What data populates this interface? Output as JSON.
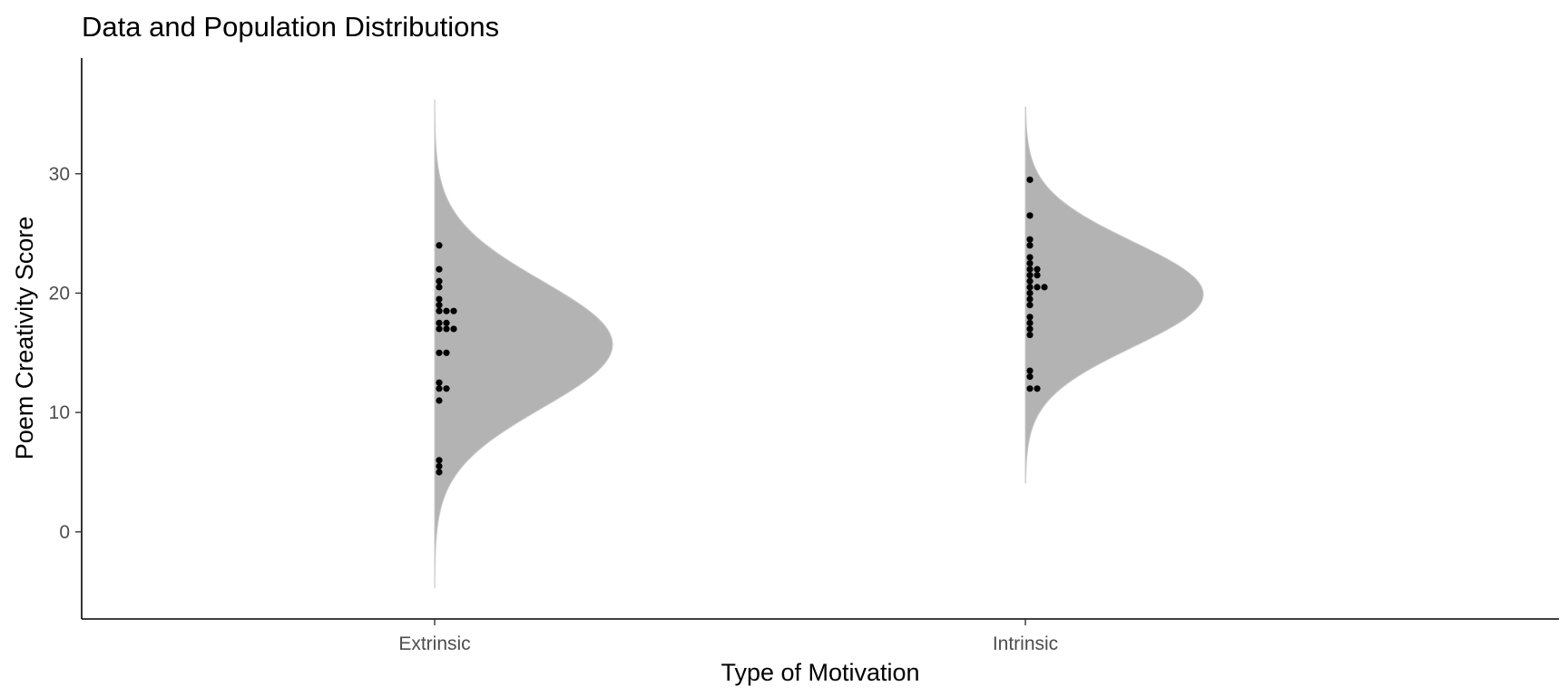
{
  "chart_data": {
    "type": "violin",
    "title": "Data and Population Distributions",
    "xlabel": "Type of Motivation",
    "ylabel": "Poem Creativity Score",
    "ylim": [
      -7.3,
      39.7
    ],
    "yticks": [
      0,
      10,
      20,
      30
    ],
    "grid": false,
    "legend": "none",
    "colors": {
      "density_fill": "#b3b3b3",
      "points": "#000000"
    },
    "categories": [
      "Extrinsic",
      "Intrinsic"
    ],
    "distributions": [
      {
        "category": "Extrinsic",
        "mean": 15.7,
        "sd": 5.3,
        "range": [
          -4.7,
          36.2
        ]
      },
      {
        "category": "Intrinsic",
        "mean": 19.9,
        "sd": 4.4,
        "range": [
          4.1,
          35.6
        ]
      }
    ],
    "points": [
      {
        "category": "Extrinsic",
        "values": [
          5,
          5.5,
          6,
          11,
          12,
          12,
          12.5,
          15,
          15,
          17,
          17,
          17,
          17.5,
          17.5,
          18.5,
          18.5,
          18.5,
          19,
          19.5,
          20.5,
          21,
          22,
          24
        ]
      },
      {
        "category": "Intrinsic",
        "values": [
          12,
          12,
          13,
          13.5,
          16.5,
          17,
          17.5,
          18,
          19,
          19.5,
          20,
          20.5,
          20.5,
          20.5,
          21,
          21.5,
          21.5,
          22,
          22,
          22.5,
          23,
          24,
          24.5,
          26.5,
          29.5
        ]
      }
    ]
  }
}
